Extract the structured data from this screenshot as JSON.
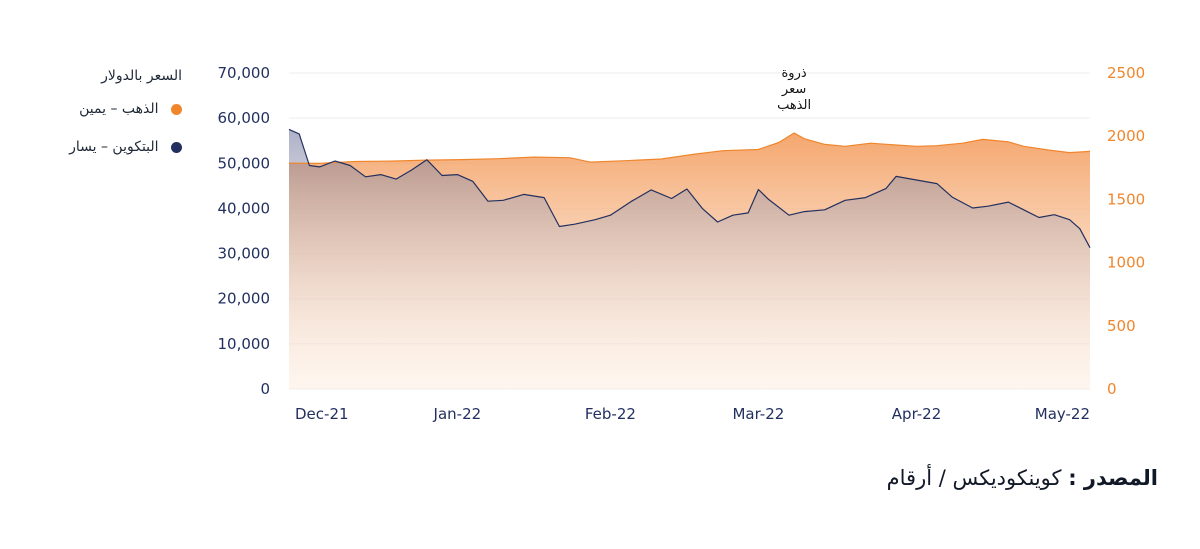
{
  "chart_data": {
    "type": "area",
    "x_axis": {
      "tick_labels": [
        "Dec-21",
        "Jan-22",
        "Feb-22",
        "Mar-22",
        "Apr-22",
        "May-22"
      ],
      "tick_dates": [
        "2021-12-01",
        "2022-01-01",
        "2022-01-31",
        "2022-03-01",
        "2022-04-01",
        "2022-05-01"
      ],
      "range": [
        "2021-11-29",
        "2022-05-05"
      ]
    },
    "y_left": {
      "labels": [
        "0",
        "10,000",
        "20,000",
        "30,000",
        "40,000",
        "50,000",
        "60,000",
        "70,000"
      ],
      "range": [
        0,
        70000
      ]
    },
    "y_right": {
      "labels": [
        "0",
        "500",
        "1000",
        "1500",
        "2000",
        "2500"
      ],
      "range": [
        0,
        2500
      ]
    },
    "legend": {
      "title": "السعر بالدولار",
      "items": [
        {
          "label": "الذهب – يمين",
          "color": "#f0862c"
        },
        {
          "label": "البتكوين – يسار",
          "color": "#23305f"
        }
      ]
    },
    "annotation": {
      "lines": [
        "ذروة",
        "سعر",
        "الذهب"
      ],
      "date": "2022-03-08"
    },
    "grid": true,
    "series": [
      {
        "name": "الذهب – يمين",
        "axis": "right",
        "color": "#f0862c",
        "points": [
          [
            "2021-11-29",
            1787
          ],
          [
            "2021-12-05",
            1785
          ],
          [
            "2021-12-12",
            1800
          ],
          [
            "2021-12-19",
            1803
          ],
          [
            "2021-12-26",
            1811
          ],
          [
            "2022-01-02",
            1815
          ],
          [
            "2022-01-09",
            1822
          ],
          [
            "2022-01-16",
            1835
          ],
          [
            "2022-01-23",
            1830
          ],
          [
            "2022-01-27",
            1795
          ],
          [
            "2022-02-03",
            1806
          ],
          [
            "2022-02-10",
            1820
          ],
          [
            "2022-02-16",
            1855
          ],
          [
            "2022-02-22",
            1885
          ],
          [
            "2022-03-01",
            1895
          ],
          [
            "2022-03-05",
            1950
          ],
          [
            "2022-03-08",
            2025
          ],
          [
            "2022-03-10",
            1980
          ],
          [
            "2022-03-14",
            1935
          ],
          [
            "2022-03-18",
            1920
          ],
          [
            "2022-03-23",
            1945
          ],
          [
            "2022-03-28",
            1930
          ],
          [
            "2022-04-01",
            1920
          ],
          [
            "2022-04-05",
            1925
          ],
          [
            "2022-04-10",
            1945
          ],
          [
            "2022-04-14",
            1975
          ],
          [
            "2022-04-19",
            1955
          ],
          [
            "2022-04-22",
            1920
          ],
          [
            "2022-04-27",
            1890
          ],
          [
            "2022-05-01",
            1870
          ],
          [
            "2022-05-05",
            1880
          ]
        ]
      },
      {
        "name": "البتكوين – يسار",
        "axis": "left",
        "color": "#23305f",
        "points": [
          [
            "2021-11-29",
            57500
          ],
          [
            "2021-12-01",
            56500
          ],
          [
            "2021-12-03",
            49500
          ],
          [
            "2021-12-05",
            49200
          ],
          [
            "2021-12-08",
            50500
          ],
          [
            "2021-12-11",
            49500
          ],
          [
            "2021-12-14",
            47000
          ],
          [
            "2021-12-17",
            47500
          ],
          [
            "2021-12-20",
            46500
          ],
          [
            "2021-12-23",
            48500
          ],
          [
            "2021-12-26",
            50800
          ],
          [
            "2021-12-29",
            47300
          ],
          [
            "2022-01-01",
            47500
          ],
          [
            "2022-01-04",
            46000
          ],
          [
            "2022-01-07",
            41600
          ],
          [
            "2022-01-10",
            41800
          ],
          [
            "2022-01-14",
            43100
          ],
          [
            "2022-01-18",
            42400
          ],
          [
            "2022-01-21",
            36000
          ],
          [
            "2022-01-24",
            36500
          ],
          [
            "2022-01-28",
            37500
          ],
          [
            "2022-01-31",
            38500
          ],
          [
            "2022-02-04",
            41500
          ],
          [
            "2022-02-08",
            44100
          ],
          [
            "2022-02-12",
            42200
          ],
          [
            "2022-02-15",
            44300
          ],
          [
            "2022-02-18",
            40000
          ],
          [
            "2022-02-21",
            37000
          ],
          [
            "2022-02-24",
            38500
          ],
          [
            "2022-02-27",
            39000
          ],
          [
            "2022-03-01",
            44200
          ],
          [
            "2022-03-03",
            42000
          ],
          [
            "2022-03-07",
            38500
          ],
          [
            "2022-03-10",
            39300
          ],
          [
            "2022-03-14",
            39700
          ],
          [
            "2022-03-18",
            41800
          ],
          [
            "2022-03-22",
            42400
          ],
          [
            "2022-03-26",
            44400
          ],
          [
            "2022-03-28",
            47100
          ],
          [
            "2022-04-01",
            46300
          ],
          [
            "2022-04-05",
            45500
          ],
          [
            "2022-04-08",
            42500
          ],
          [
            "2022-04-12",
            40100
          ],
          [
            "2022-04-15",
            40500
          ],
          [
            "2022-04-19",
            41400
          ],
          [
            "2022-04-22",
            39700
          ],
          [
            "2022-04-25",
            38000
          ],
          [
            "2022-04-28",
            38600
          ],
          [
            "2022-05-01",
            37500
          ],
          [
            "2022-05-03",
            35500
          ],
          [
            "2022-05-05",
            31300
          ]
        ]
      }
    ]
  },
  "source": {
    "label": "المصدر :",
    "text": "كوينكوديكس / أرقام"
  }
}
